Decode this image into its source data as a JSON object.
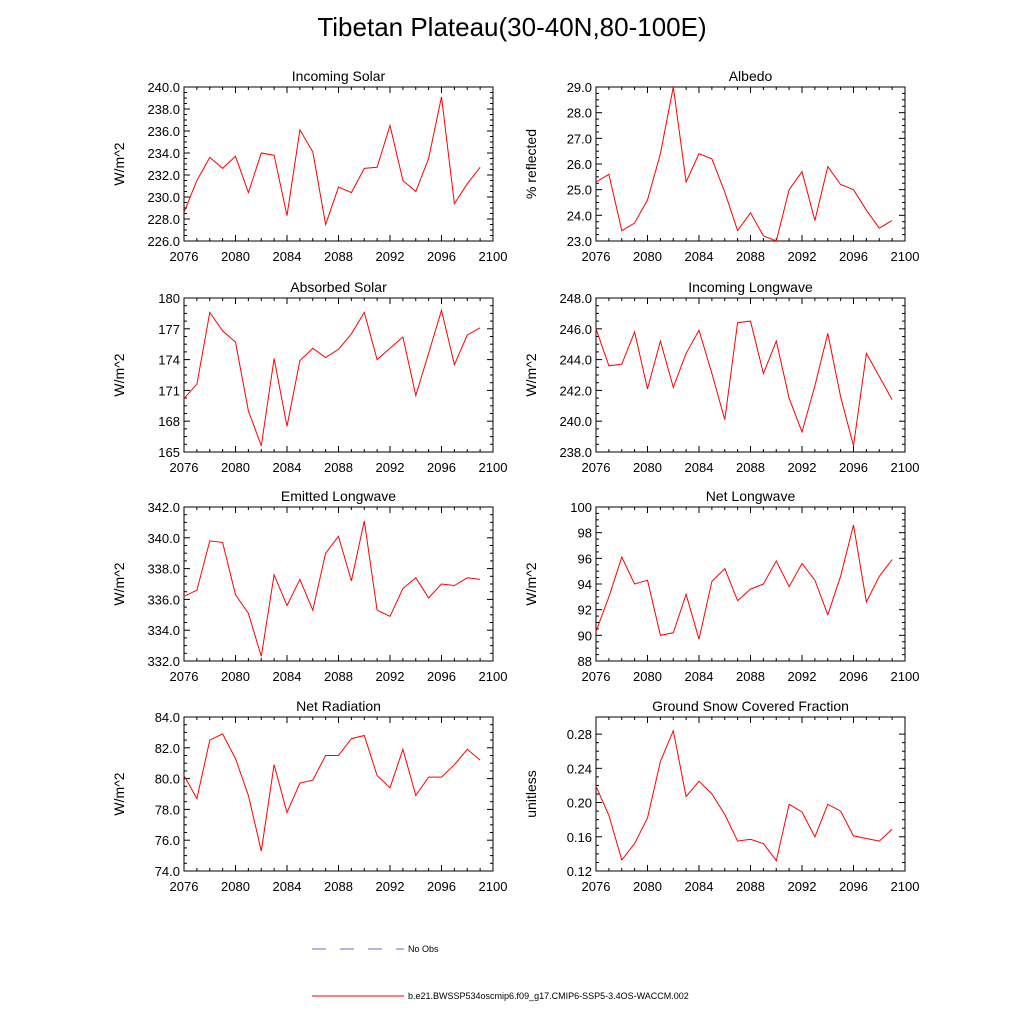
{
  "title": "Tibetan Plateau(30-40N,80-100E)",
  "colors": {
    "series": "#ff0000",
    "obs": "#6a6ac8",
    "axis": "#000000"
  },
  "legend": {
    "obs_label": "No Obs",
    "model_label": "b.e21.BWSSP534oscmip6.f09_g17.CMIP6-SSP5-3.4OS-WACCM.002"
  },
  "chart_data": [
    {
      "type": "line",
      "title": "Incoming Solar",
      "ylabel": "W/m^2",
      "xlim": [
        2076,
        2100
      ],
      "ylim": [
        226,
        240
      ],
      "xticks": [
        "2076",
        "2080",
        "2084",
        "2088",
        "2092",
        "2096",
        "2100"
      ],
      "yticks": [
        "226.0",
        "228.0",
        "230.0",
        "232.0",
        "234.0",
        "236.0",
        "238.0",
        "240.0"
      ],
      "x": [
        2076,
        2077,
        2078,
        2079,
        2080,
        2081,
        2082,
        2083,
        2084,
        2085,
        2086,
        2087,
        2088,
        2089,
        2090,
        2091,
        2092,
        2093,
        2094,
        2095,
        2096,
        2097,
        2098,
        2099
      ],
      "values": [
        228.6,
        231.5,
        233.6,
        232.6,
        233.7,
        230.4,
        234.0,
        233.8,
        228.3,
        236.1,
        234.1,
        227.5,
        230.9,
        230.4,
        232.6,
        232.7,
        236.5,
        231.5,
        230.5,
        233.5,
        239.1,
        229.4,
        231.2,
        232.7
      ]
    },
    {
      "type": "line",
      "title": "Albedo",
      "ylabel": "% reflected",
      "xlim": [
        2076,
        2100
      ],
      "ylim": [
        23,
        29
      ],
      "xticks": [
        "2076",
        "2080",
        "2084",
        "2088",
        "2092",
        "2096",
        "2100"
      ],
      "yticks": [
        "23.0",
        "24.0",
        "25.0",
        "26.0",
        "27.0",
        "28.0",
        "29.0"
      ],
      "x": [
        2076,
        2077,
        2078,
        2079,
        2080,
        2081,
        2082,
        2083,
        2084,
        2085,
        2086,
        2087,
        2088,
        2089,
        2090,
        2091,
        2092,
        2093,
        2094,
        2095,
        2096,
        2097,
        2098,
        2099
      ],
      "values": [
        25.3,
        25.6,
        23.4,
        23.7,
        24.6,
        26.4,
        29.0,
        25.3,
        26.4,
        26.2,
        24.9,
        23.4,
        24.1,
        23.2,
        23.0,
        25.0,
        25.7,
        23.8,
        25.9,
        25.2,
        25.0,
        24.2,
        23.5,
        23.8
      ]
    },
    {
      "type": "line",
      "title": "Absorbed Solar",
      "ylabel": "W/m^2",
      "xlim": [
        2076,
        2100
      ],
      "ylim": [
        165,
        180
      ],
      "xticks": [
        "2076",
        "2080",
        "2084",
        "2088",
        "2092",
        "2096",
        "2100"
      ],
      "yticks": [
        "165",
        "168",
        "171",
        "174",
        "177",
        "180"
      ],
      "x": [
        2076,
        2077,
        2078,
        2079,
        2080,
        2081,
        2082,
        2083,
        2084,
        2085,
        2086,
        2087,
        2088,
        2089,
        2090,
        2091,
        2092,
        2093,
        2094,
        2095,
        2096,
        2097,
        2098,
        2099
      ],
      "values": [
        170.2,
        171.6,
        178.6,
        176.8,
        175.7,
        169.0,
        165.6,
        174.1,
        167.5,
        173.9,
        175.1,
        174.2,
        175.0,
        176.5,
        178.6,
        174.0,
        175.1,
        176.2,
        170.5,
        174.6,
        178.8,
        173.5,
        176.4,
        177.1
      ]
    },
    {
      "type": "line",
      "title": "Incoming Longwave",
      "ylabel": "W/m^2",
      "xlim": [
        2076,
        2100
      ],
      "ylim": [
        238,
        248
      ],
      "xticks": [
        "2076",
        "2080",
        "2084",
        "2088",
        "2092",
        "2096",
        "2100"
      ],
      "yticks": [
        "238.0",
        "240.0",
        "242.0",
        "244.0",
        "246.0",
        "248.0"
      ],
      "x": [
        2076,
        2077,
        2078,
        2079,
        2080,
        2081,
        2082,
        2083,
        2084,
        2085,
        2086,
        2087,
        2088,
        2089,
        2090,
        2091,
        2092,
        2093,
        2094,
        2095,
        2096,
        2097,
        2098,
        2099
      ],
      "values": [
        246.0,
        243.6,
        243.7,
        245.8,
        242.1,
        245.2,
        242.2,
        244.4,
        245.9,
        243.1,
        240.1,
        246.4,
        246.5,
        243.1,
        245.2,
        241.5,
        239.3,
        242.3,
        245.7,
        241.6,
        238.4,
        244.4,
        242.9,
        241.4
      ]
    },
    {
      "type": "line",
      "title": "Emitted Longwave",
      "ylabel": "W/m^2",
      "xlim": [
        2076,
        2100
      ],
      "ylim": [
        332,
        342
      ],
      "xticks": [
        "2076",
        "2080",
        "2084",
        "2088",
        "2092",
        "2096",
        "2100"
      ],
      "yticks": [
        "332.0",
        "334.0",
        "336.0",
        "338.0",
        "340.0",
        "342.0"
      ],
      "x": [
        2076,
        2077,
        2078,
        2079,
        2080,
        2081,
        2082,
        2083,
        2084,
        2085,
        2086,
        2087,
        2088,
        2089,
        2090,
        2091,
        2092,
        2093,
        2094,
        2095,
        2096,
        2097,
        2098,
        2099
      ],
      "values": [
        336.2,
        336.6,
        339.8,
        339.7,
        336.3,
        335.1,
        332.3,
        337.6,
        335.6,
        337.3,
        335.3,
        339.0,
        340.1,
        337.2,
        341.1,
        335.3,
        334.9,
        336.7,
        337.4,
        336.1,
        337.0,
        336.9,
        337.4,
        337.3
      ]
    },
    {
      "type": "line",
      "title": "Net Longwave",
      "ylabel": "W/m^2",
      "xlim": [
        2076,
        2100
      ],
      "ylim": [
        88,
        100
      ],
      "xticks": [
        "2076",
        "2080",
        "2084",
        "2088",
        "2092",
        "2096",
        "2100"
      ],
      "yticks": [
        "88",
        "90",
        "92",
        "94",
        "96",
        "98",
        "100"
      ],
      "x": [
        2076,
        2077,
        2078,
        2079,
        2080,
        2081,
        2082,
        2083,
        2084,
        2085,
        2086,
        2087,
        2088,
        2089,
        2090,
        2091,
        2092,
        2093,
        2094,
        2095,
        2096,
        2097,
        2098,
        2099
      ],
      "values": [
        90.3,
        93.0,
        96.1,
        94.0,
        94.3,
        90.0,
        90.2,
        93.2,
        89.7,
        94.2,
        95.2,
        92.7,
        93.6,
        94.0,
        95.8,
        93.8,
        95.6,
        94.3,
        91.6,
        94.6,
        98.6,
        92.6,
        94.6,
        95.9
      ]
    },
    {
      "type": "line",
      "title": "Net Radiation",
      "ylabel": "W/m^2",
      "xlim": [
        2076,
        2100
      ],
      "ylim": [
        74,
        84
      ],
      "xticks": [
        "2076",
        "2080",
        "2084",
        "2088",
        "2092",
        "2096",
        "2100"
      ],
      "yticks": [
        "74.0",
        "76.0",
        "78.0",
        "80.0",
        "82.0",
        "84.0"
      ],
      "x": [
        2076,
        2077,
        2078,
        2079,
        2080,
        2081,
        2082,
        2083,
        2084,
        2085,
        2086,
        2087,
        2088,
        2089,
        2090,
        2091,
        2092,
        2093,
        2094,
        2095,
        2096,
        2097,
        2098,
        2099
      ],
      "values": [
        80.2,
        78.7,
        82.5,
        82.9,
        81.3,
        78.9,
        75.3,
        80.9,
        77.8,
        79.7,
        79.9,
        81.5,
        81.5,
        82.6,
        82.8,
        80.2,
        79.4,
        81.9,
        78.9,
        80.1,
        80.1,
        80.9,
        81.9,
        81.2
      ]
    },
    {
      "type": "line",
      "title": "Ground Snow Covered Fraction",
      "ylabel": "unitless",
      "xlim": [
        2076,
        2100
      ],
      "ylim": [
        0.12,
        0.3
      ],
      "xticks": [
        "2076",
        "2080",
        "2084",
        "2088",
        "2092",
        "2096",
        "2100"
      ],
      "yticks": [
        "0.12",
        "0.16",
        "0.20",
        "0.24",
        "0.28"
      ],
      "x": [
        2076,
        2077,
        2078,
        2079,
        2080,
        2081,
        2082,
        2083,
        2084,
        2085,
        2086,
        2087,
        2088,
        2089,
        2090,
        2091,
        2092,
        2093,
        2094,
        2095,
        2096,
        2097,
        2098,
        2099
      ],
      "values": [
        0.219,
        0.185,
        0.133,
        0.152,
        0.182,
        0.248,
        0.284,
        0.207,
        0.225,
        0.21,
        0.186,
        0.155,
        0.157,
        0.152,
        0.132,
        0.198,
        0.189,
        0.16,
        0.198,
        0.19,
        0.161,
        0.158,
        0.155,
        0.169
      ]
    }
  ]
}
